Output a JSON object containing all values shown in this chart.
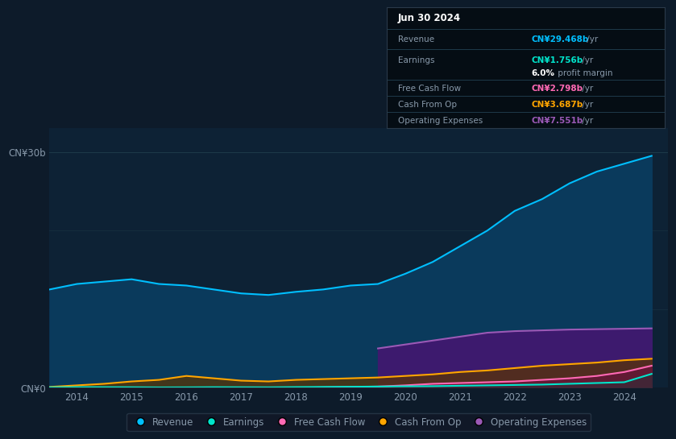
{
  "background_color": "#0d1b2a",
  "plot_bg_color": "#0d2235",
  "years": [
    2013.5,
    2014,
    2014.5,
    2015,
    2015.5,
    2016,
    2016.5,
    2017,
    2017.5,
    2018,
    2018.5,
    2019,
    2019.5,
    2020,
    2020.5,
    2021,
    2021.5,
    2022,
    2022.5,
    2023,
    2023.5,
    2024,
    2024.5
  ],
  "revenue": [
    12.5,
    13.2,
    13.5,
    13.8,
    13.2,
    13.0,
    12.5,
    12.0,
    11.8,
    12.2,
    12.5,
    13.0,
    13.2,
    14.5,
    16.0,
    18.0,
    20.0,
    22.5,
    24.0,
    26.0,
    27.5,
    28.5,
    29.5
  ],
  "earnings": [
    0.05,
    0.08,
    0.07,
    0.06,
    0.04,
    0.05,
    0.07,
    0.06,
    0.05,
    0.08,
    0.1,
    0.12,
    0.15,
    0.18,
    0.2,
    0.25,
    0.3,
    0.35,
    0.4,
    0.5,
    0.6,
    0.7,
    1.76
  ],
  "free_cash_flow": [
    0.0,
    0.0,
    0.0,
    0.0,
    0.0,
    0.0,
    0.0,
    0.0,
    0.0,
    0.0,
    0.05,
    0.1,
    0.15,
    0.3,
    0.5,
    0.6,
    0.7,
    0.8,
    1.0,
    1.2,
    1.5,
    2.0,
    2.8
  ],
  "cash_from_op": [
    0.1,
    0.3,
    0.5,
    0.8,
    1.0,
    1.5,
    1.2,
    0.9,
    0.8,
    1.0,
    1.1,
    1.2,
    1.3,
    1.5,
    1.7,
    2.0,
    2.2,
    2.5,
    2.8,
    3.0,
    3.2,
    3.5,
    3.687
  ],
  "operating_expenses": [
    5.0,
    5.5,
    6.0,
    6.5,
    7.0,
    7.2,
    7.3,
    7.4,
    7.551
  ],
  "operating_expenses_years": [
    2019.5,
    2020,
    2020.5,
    2021,
    2021.5,
    2022,
    2022.5,
    2023,
    2024.5
  ],
  "ylim": [
    0,
    33
  ],
  "xlim": [
    2013.5,
    2024.8
  ],
  "ytick_labels": [
    "CN¥30b",
    "CN¥0"
  ],
  "ytick_values": [
    30,
    0
  ],
  "xtick_labels": [
    "2014",
    "2015",
    "2016",
    "2017",
    "2018",
    "2019",
    "2020",
    "2021",
    "2022",
    "2023",
    "2024"
  ],
  "xtick_values": [
    2014,
    2015,
    2016,
    2017,
    2018,
    2019,
    2020,
    2021,
    2022,
    2023,
    2024
  ],
  "revenue_color": "#00bfff",
  "revenue_fill": "#0a3a5c",
  "earnings_color": "#00e5cc",
  "free_cash_flow_color": "#ff69b4",
  "cash_from_op_color": "#ffa500",
  "operating_expenses_color": "#9b59b6",
  "operating_expenses_fill": "#3d1a6e",
  "grid_color": "#1e3a4a",
  "text_color": "#8899aa",
  "legend_bg": "#111827",
  "legend_border": "#2a3a4a",
  "tooltip_title": "Jun 30 2024",
  "tooltip_revenue_label": "Revenue",
  "tooltip_revenue_value": "CN¥29.468b",
  "tooltip_earnings_label": "Earnings",
  "tooltip_earnings_value": "CN¥1.756b",
  "tooltip_margin_pct": "6.0%",
  "tooltip_margin_rest": " profit margin",
  "tooltip_fcf_label": "Free Cash Flow",
  "tooltip_fcf_value": "CN¥2.798b",
  "tooltip_cashop_label": "Cash From Op",
  "tooltip_cashop_value": "CN¥3.687b",
  "tooltip_opex_label": "Operating Expenses",
  "tooltip_opex_value": "CN¥7.551b",
  "legend_items": [
    "Revenue",
    "Earnings",
    "Free Cash Flow",
    "Cash From Op",
    "Operating Expenses"
  ],
  "legend_colors": [
    "#00bfff",
    "#00e5cc",
    "#ff69b4",
    "#ffa500",
    "#9b59b6"
  ]
}
